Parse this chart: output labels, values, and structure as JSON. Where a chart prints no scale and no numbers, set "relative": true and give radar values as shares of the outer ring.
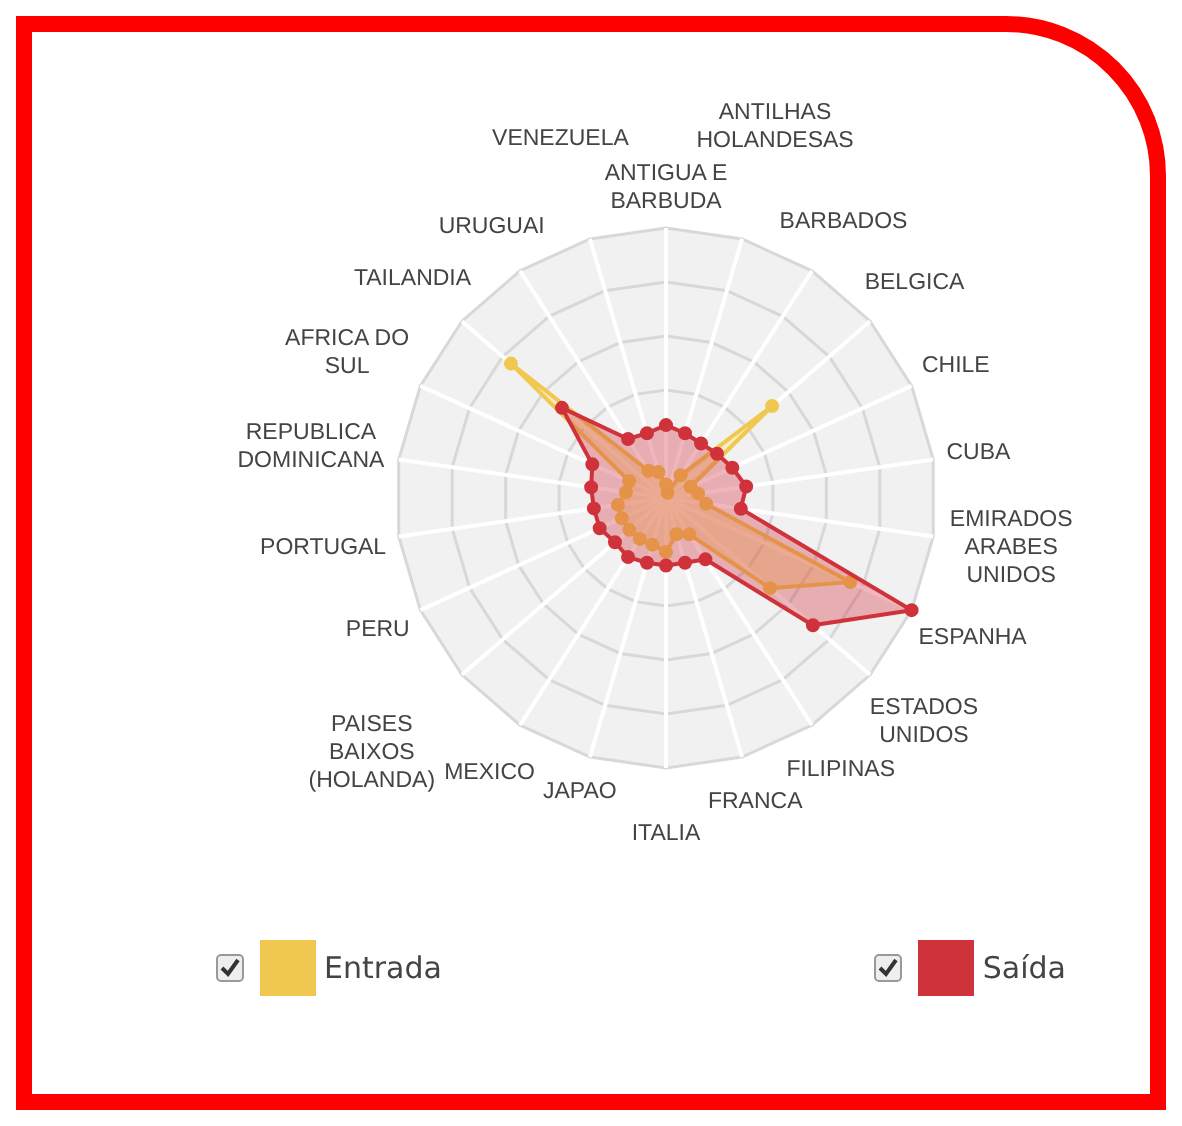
{
  "chart_data": {
    "type": "radar",
    "relative": true,
    "grid": true,
    "legend": "bottom",
    "marker": "circle",
    "categories": [
      "ANTIGUA E BARBUDA",
      "ANTILHAS HOLANDESAS",
      "BARBADOS",
      "BELGICA",
      "CHILE",
      "CUBA",
      "EMIRADOS ARABES UNIDOS",
      "ESPANHA",
      "ESTADOS UNIDOS",
      "FILIPINAS",
      "FRANCA",
      "ITALIA",
      "JAPAO",
      "MEXICO",
      "PAISES BAIXOS (HOLANDA)",
      "PERU",
      "PORTUGAL",
      "REPUBLICA DOMINICANA",
      "AFRICA DO SUL",
      "TAILANDIA",
      "URUGUAI",
      "VENEZUELA"
    ],
    "series": [
      {
        "name": "Entrada",
        "color": "#f0c850",
        "values": [
          0.05,
          0.02,
          0.1,
          0.52,
          0.1,
          0.12,
          0.15,
          0.75,
          0.51,
          0.16,
          0.14,
          0.2,
          0.18,
          0.18,
          0.18,
          0.18,
          0.18,
          0.15,
          0.15,
          0.76,
          0.12,
          0.1
        ]
      },
      {
        "name": "Saída",
        "color": "#d0323c",
        "values": [
          0.27,
          0.25,
          0.24,
          0.25,
          0.27,
          0.3,
          0.28,
          1.0,
          0.72,
          0.27,
          0.25,
          0.25,
          0.25,
          0.26,
          0.25,
          0.27,
          0.27,
          0.28,
          0.3,
          0.51,
          0.26,
          0.25
        ]
      }
    ]
  }
}
